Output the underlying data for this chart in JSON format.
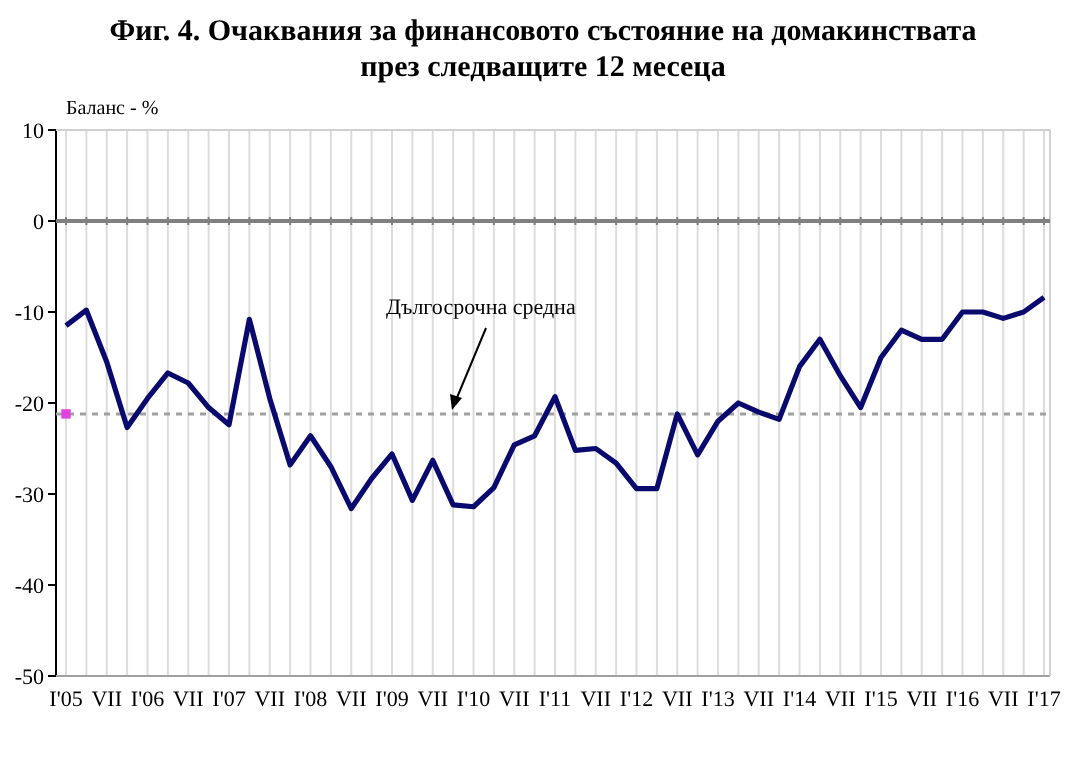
{
  "chart_data": {
    "type": "line",
    "title": "Фиг. 4. Очаквания за финансовото състояние на домакинствата\nпрез следващите 12 месеца",
    "ylabel": "Баланс - %",
    "categories": [
      "I'05",
      null,
      "VII",
      null,
      "I'06",
      null,
      "VII",
      null,
      "I'07",
      null,
      "VII",
      null,
      "I'08",
      null,
      "VII",
      null,
      "I'09",
      null,
      "VII",
      null,
      "I'10",
      null,
      "VII",
      null,
      "I'11",
      null,
      "VII",
      null,
      "I'12",
      null,
      "VII",
      null,
      "I'13",
      null,
      "VII",
      null,
      "I'14",
      null,
      "VII",
      null,
      "I'15",
      null,
      "VII",
      null,
      "I'16",
      null,
      "VII",
      null,
      "I'17"
    ],
    "series": [
      {
        "color": "#0a0a6e",
        "values": [
          -11.5,
          -9.8,
          -15.5,
          -22.7,
          -19.5,
          -16.7,
          -17.8,
          -20.5,
          -22.4,
          -10.8,
          -19.5,
          -26.8,
          -23.6,
          -27,
          -31.6,
          -28.3,
          -25.6,
          -30.7,
          -26.3,
          -31.2,
          -31.4,
          -29.3,
          -24.6,
          -23.6,
          -19.3,
          -25.2,
          -25,
          -26.6,
          -29.4,
          -29.4,
          -21.2,
          -25.7,
          -22,
          -20,
          -21,
          -21.8,
          -16,
          -13,
          -17,
          -20.5,
          -15,
          -12,
          -13,
          -13,
          -10,
          -10,
          -10.7,
          -10,
          -8.4
        ]
      },
      {
        "type": "scatter",
        "color": "#e040e0",
        "marker": "square",
        "values": [
          -21.2,
          null,
          null,
          null,
          null,
          null,
          null,
          null,
          null,
          null,
          null,
          null,
          null,
          null,
          null,
          null,
          null,
          null,
          null,
          null,
          null,
          null,
          null,
          null,
          null,
          null,
          null,
          null,
          null,
          null,
          null,
          null,
          null,
          null,
          null,
          null,
          null,
          null,
          null,
          null,
          null,
          null,
          null,
          null,
          null,
          null,
          null,
          null,
          null
        ]
      }
    ],
    "ylim": [
      -50,
      10
    ],
    "yticks": [
      -50,
      -40,
      -30,
      -20,
      -10,
      0,
      10
    ],
    "grid": "x",
    "marker": "none",
    "line_style": "solid",
    "ref_lines": [
      {
        "axis": "y",
        "value": 0,
        "color": "#808080",
        "line_style": "solid"
      },
      {
        "axis": "y",
        "value": -21.2,
        "color": "#a0a0a0",
        "line_style": "dashed"
      }
    ],
    "annotations": [
      "Дългосрочна средна"
    ]
  }
}
